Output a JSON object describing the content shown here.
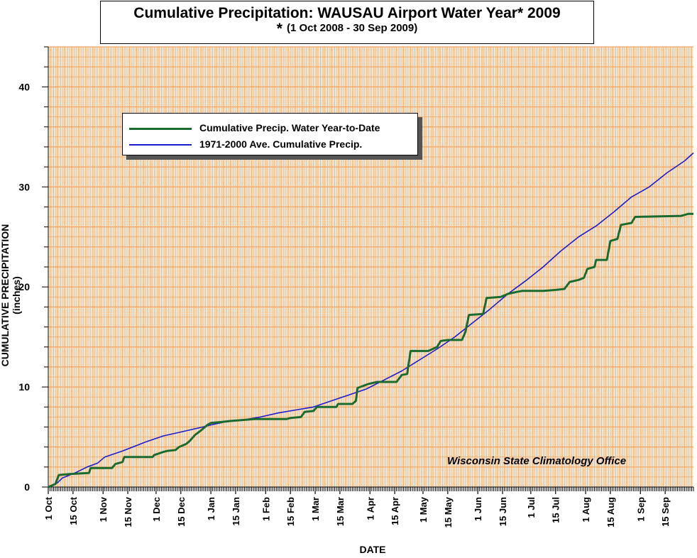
{
  "title": "Cumulative Precipitation: WAUSAU Airport Water Year* 2009",
  "subtitle_star": "*",
  "subtitle": "(1 Oct 2008 - 30 Sep 2009)",
  "watermark": "Wisconsin State Climatology Office",
  "colors": {
    "grid": "#f4a460",
    "plot_bg": "#fdf4e8",
    "observed": "#1a6b2e",
    "normal": "#1a1ad0"
  },
  "chart_data": {
    "type": "line",
    "title": "Cumulative Precipitation: WAUSAU Airport Water Year* 2009",
    "xlabel": "DATE",
    "ylabel": "CUMULATIVE PRECIPITATION (inches)",
    "x_unit": "day of water year (0 = 1 Oct 2008)",
    "xlim": [
      0,
      365
    ],
    "ylim": [
      0,
      44
    ],
    "yticks": [
      0,
      10,
      20,
      30,
      40
    ],
    "grid": true,
    "legend_position": "upper-left",
    "xtick_labels": [
      {
        "day": 0,
        "label": "1 Oct"
      },
      {
        "day": 14,
        "label": "15 Oct"
      },
      {
        "day": 31,
        "label": "1 Nov"
      },
      {
        "day": 45,
        "label": "15 Nov"
      },
      {
        "day": 61,
        "label": "1 Dec"
      },
      {
        "day": 75,
        "label": "15 Dec"
      },
      {
        "day": 92,
        "label": "1 Jan"
      },
      {
        "day": 106,
        "label": "15 Jan"
      },
      {
        "day": 123,
        "label": "1 Feb"
      },
      {
        "day": 137,
        "label": "15 Feb"
      },
      {
        "day": 151,
        "label": "1 Mar"
      },
      {
        "day": 165,
        "label": "15 Mar"
      },
      {
        "day": 182,
        "label": "1 Apr"
      },
      {
        "day": 196,
        "label": "15 Apr"
      },
      {
        "day": 212,
        "label": "1 May"
      },
      {
        "day": 226,
        "label": "15 May"
      },
      {
        "day": 243,
        "label": "1 Jun"
      },
      {
        "day": 257,
        "label": "15 Jun"
      },
      {
        "day": 273,
        "label": "1 Jul"
      },
      {
        "day": 287,
        "label": "15 Jul"
      },
      {
        "day": 304,
        "label": "1 Aug"
      },
      {
        "day": 318,
        "label": "15 Aug"
      },
      {
        "day": 335,
        "label": "1 Sep"
      },
      {
        "day": 349,
        "label": "15 Sep"
      }
    ],
    "series": [
      {
        "name": "Cumulative Precip.  Water Year-to-Date",
        "points": [
          [
            0,
            0
          ],
          [
            4,
            0.3
          ],
          [
            6,
            1.2
          ],
          [
            12,
            1.3
          ],
          [
            23,
            1.4
          ],
          [
            24,
            1.9
          ],
          [
            36,
            1.9
          ],
          [
            38,
            2.3
          ],
          [
            42,
            2.5
          ],
          [
            43,
            3.0
          ],
          [
            59,
            3.0
          ],
          [
            60,
            3.2
          ],
          [
            65,
            3.5
          ],
          [
            67,
            3.6
          ],
          [
            72,
            3.7
          ],
          [
            74,
            4.0
          ],
          [
            78,
            4.3
          ],
          [
            80,
            4.6
          ],
          [
            83,
            5.2
          ],
          [
            86,
            5.6
          ],
          [
            88,
            5.9
          ],
          [
            90,
            6.2
          ],
          [
            92,
            6.4
          ],
          [
            98,
            6.5
          ],
          [
            103,
            6.6
          ],
          [
            110,
            6.7
          ],
          [
            117,
            6.8
          ],
          [
            135,
            6.8
          ],
          [
            137,
            6.9
          ],
          [
            143,
            7.0
          ],
          [
            145,
            7.5
          ],
          [
            150,
            7.6
          ],
          [
            152,
            8.0
          ],
          [
            163,
            8.0
          ],
          [
            164,
            8.3
          ],
          [
            172,
            8.3
          ],
          [
            174,
            8.6
          ],
          [
            175,
            9.9
          ],
          [
            181,
            10.3
          ],
          [
            186,
            10.5
          ],
          [
            197,
            10.5
          ],
          [
            200,
            11.2
          ],
          [
            203,
            11.3
          ],
          [
            205,
            13.6
          ],
          [
            215,
            13.6
          ],
          [
            220,
            14.0
          ],
          [
            222,
            14.6
          ],
          [
            226,
            14.7
          ],
          [
            234,
            14.7
          ],
          [
            236,
            15.5
          ],
          [
            238,
            17.2
          ],
          [
            246,
            17.3
          ],
          [
            248,
            18.9
          ],
          [
            256,
            19.0
          ],
          [
            260,
            19.3
          ],
          [
            265,
            19.5
          ],
          [
            268,
            19.6
          ],
          [
            280,
            19.6
          ],
          [
            287,
            19.7
          ],
          [
            292,
            19.8
          ],
          [
            295,
            20.5
          ],
          [
            300,
            20.7
          ],
          [
            303,
            20.9
          ],
          [
            305,
            21.8
          ],
          [
            309,
            22.0
          ],
          [
            310,
            22.7
          ],
          [
            316,
            22.7
          ],
          [
            318,
            24.6
          ],
          [
            322,
            24.8
          ],
          [
            324,
            26.2
          ],
          [
            330,
            26.4
          ],
          [
            332,
            27.0
          ],
          [
            358,
            27.1
          ],
          [
            362,
            27.3
          ],
          [
            365,
            27.3
          ]
        ]
      },
      {
        "name": "1971-2000 Ave. Cumulative Precip.",
        "points": [
          [
            0,
            0
          ],
          [
            5,
            0.4
          ],
          [
            8,
            0.9
          ],
          [
            15,
            1.4
          ],
          [
            22,
            2.0
          ],
          [
            28,
            2.4
          ],
          [
            32,
            3.0
          ],
          [
            42,
            3.6
          ],
          [
            55,
            4.5
          ],
          [
            65,
            5.1
          ],
          [
            75,
            5.5
          ],
          [
            85,
            5.9
          ],
          [
            92,
            6.2
          ],
          [
            100,
            6.5
          ],
          [
            110,
            6.7
          ],
          [
            120,
            7.0
          ],
          [
            130,
            7.4
          ],
          [
            140,
            7.7
          ],
          [
            150,
            8.0
          ],
          [
            160,
            8.6
          ],
          [
            170,
            9.2
          ],
          [
            180,
            9.8
          ],
          [
            190,
            10.7
          ],
          [
            200,
            11.6
          ],
          [
            210,
            12.7
          ],
          [
            220,
            13.8
          ],
          [
            230,
            15.0
          ],
          [
            240,
            16.4
          ],
          [
            250,
            17.8
          ],
          [
            260,
            19.3
          ],
          [
            270,
            20.6
          ],
          [
            280,
            22.0
          ],
          [
            290,
            23.6
          ],
          [
            300,
            25.0
          ],
          [
            310,
            26.1
          ],
          [
            320,
            27.5
          ],
          [
            330,
            29.0
          ],
          [
            340,
            30.0
          ],
          [
            350,
            31.4
          ],
          [
            360,
            32.6
          ],
          [
            365,
            33.4
          ]
        ]
      }
    ]
  }
}
